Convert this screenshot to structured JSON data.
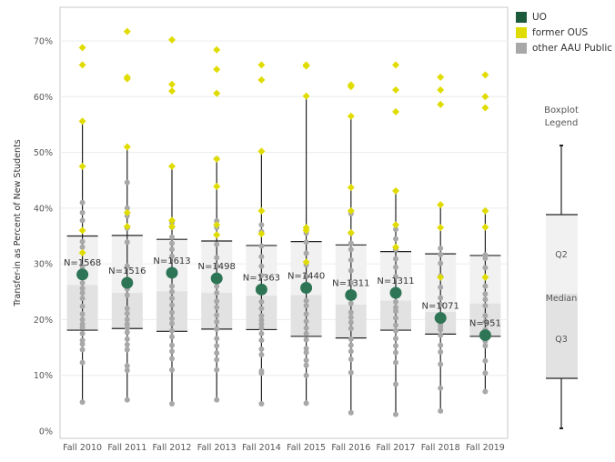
{
  "chart_data": {
    "type": "boxplot",
    "title": "",
    "xlabel": "",
    "ylabel": "Transfer-in as Percent of New Students",
    "ylim": [
      0,
      73
    ],
    "y_ticks": [
      0,
      10,
      20,
      30,
      40,
      50,
      60,
      70
    ],
    "y_tick_labels": [
      "0%",
      "10%",
      "20%",
      "30%",
      "40%",
      "50%",
      "60%",
      "70%"
    ],
    "grid": true,
    "categories": [
      "Fall 2010",
      "Fall 2011",
      "Fall 2012",
      "Fall 2013",
      "Fall 2014",
      "Fall 2015",
      "Fall 2016",
      "Fall 2017",
      "Fall 2018",
      "Fall 2019"
    ],
    "boxes": [
      {
        "whisker_high": 55.6,
        "box_high": 35.0,
        "median": 26.2,
        "box_low": 18.1,
        "whisker_low": 5.2
      },
      {
        "whisker_high": 51.0,
        "box_high": 35.1,
        "median": 24.8,
        "box_low": 18.4,
        "whisker_low": 5.6
      },
      {
        "whisker_high": 47.5,
        "box_high": 34.4,
        "median": 25.1,
        "box_low": 17.9,
        "whisker_low": 4.9
      },
      {
        "whisker_high": 49.0,
        "box_high": 34.1,
        "median": 24.8,
        "box_low": 18.3,
        "whisker_low": 5.6
      },
      {
        "whisker_high": 50.2,
        "box_high": 33.3,
        "median": 24.3,
        "box_low": 18.2,
        "whisker_low": 4.9
      },
      {
        "whisker_high": 60.1,
        "box_high": 34.0,
        "median": 24.4,
        "box_low": 17.0,
        "whisker_low": 5.0
      },
      {
        "whisker_high": 56.5,
        "box_high": 33.4,
        "median": 22.7,
        "box_low": 16.7,
        "whisker_low": 3.3
      },
      {
        "whisker_high": 43.1,
        "box_high": 32.2,
        "median": 23.4,
        "box_low": 18.1,
        "whisker_low": 3.0
      },
      {
        "whisker_high": 40.7,
        "box_high": 31.8,
        "median": 21.4,
        "box_low": 17.4,
        "whisker_low": 3.6
      },
      {
        "whisker_high": 39.5,
        "box_high": 31.5,
        "median": 22.9,
        "box_low": 17.0,
        "whisker_low": 7.1
      }
    ],
    "series": [
      {
        "name": "UO",
        "color": "#2e7556",
        "values": [
          28.1,
          26.6,
          28.4,
          27.4,
          25.4,
          25.7,
          24.4,
          24.8,
          20.3,
          17.2
        ],
        "labels": [
          "N=1568",
          "N=1516",
          "N=1613",
          "N=1498",
          "N=1363",
          "N=1440",
          "N=1311",
          "N=1311",
          "N=1071",
          "N=951"
        ]
      },
      {
        "name": "former OUS",
        "color": "#e0dc00",
        "values": [
          [
            68.8,
            65.7,
            55.6,
            47.5,
            36.0,
            32.0
          ],
          [
            71.7,
            63.5,
            63.2,
            51.0,
            39.2,
            36.7
          ],
          [
            70.2,
            62.2,
            61.0,
            47.5,
            37.8,
            36.7
          ],
          [
            68.4,
            64.9,
            60.6,
            48.8,
            43.9,
            37.0,
            35.2
          ],
          [
            65.7,
            63.0,
            50.2,
            39.5,
            35.4
          ],
          [
            65.7,
            65.5,
            60.1,
            36.5,
            36.0,
            30.3
          ],
          [
            62.1,
            61.8,
            56.5,
            43.7,
            39.5,
            35.6
          ],
          [
            65.7,
            61.2,
            57.3,
            43.1,
            37.0,
            33.0
          ],
          [
            63.5,
            61.2,
            58.6,
            40.6,
            36.5,
            27.6
          ],
          [
            63.9,
            60.0,
            58.0,
            39.5,
            36.6,
            27.6
          ]
        ]
      },
      {
        "name": "other AAU Public",
        "color": "#a8a8a8",
        "values": [
          [
            41.0,
            39.2,
            37.8,
            34.0,
            33.0,
            29.5,
            27.6,
            26.6,
            25.6,
            24.8,
            23.8,
            22.4,
            21.0,
            20.0,
            19.2,
            18.6,
            17.5,
            16.3,
            15.6,
            14.6,
            12.3,
            5.2
          ],
          [
            44.6,
            40.0,
            38.6,
            36.4,
            33.9,
            29.6,
            26.4,
            25.5,
            24.4,
            22.0,
            21.1,
            20.0,
            19.2,
            18.5,
            17.7,
            16.5,
            15.5,
            14.6,
            11.7,
            10.9,
            5.6
          ],
          [
            37.4,
            36.6,
            34.8,
            33.7,
            32.6,
            31.4,
            26.0,
            25.0,
            23.8,
            22.6,
            21.3,
            20.2,
            19.3,
            18.0,
            16.9,
            15.4,
            14.3,
            13.0,
            11.0,
            4.9
          ],
          [
            37.7,
            36.5,
            35.2,
            33.5,
            31.1,
            29.6,
            26.0,
            24.8,
            23.3,
            22.2,
            20.8,
            19.6,
            18.3,
            16.6,
            15.3,
            14.0,
            12.8,
            11.0,
            5.6
          ],
          [
            37.0,
            35.8,
            33.2,
            31.3,
            29.6,
            27.9,
            24.9,
            23.2,
            22.0,
            20.7,
            19.9,
            19.2,
            18.5,
            17.5,
            16.3,
            14.7,
            13.7,
            10.8,
            10.4,
            4.9
          ],
          [
            36.4,
            35.5,
            33.9,
            31.9,
            29.8,
            27.7,
            23.4,
            22.5,
            21.0,
            19.7,
            18.5,
            17.5,
            16.4,
            14.8,
            14.1,
            12.7,
            11.8,
            10.0,
            5.0
          ],
          [
            39.0,
            35.5,
            33.7,
            32.6,
            30.7,
            28.8,
            26.6,
            24.8,
            22.9,
            21.3,
            20.4,
            19.5,
            18.4,
            16.5,
            15.4,
            14.3,
            12.9,
            10.5,
            3.3
          ],
          [
            36.2,
            34.5,
            32.6,
            30.9,
            29.4,
            27.7,
            25.0,
            23.2,
            22.2,
            21.5,
            20.3,
            19.0,
            18.0,
            16.6,
            15.3,
            14.1,
            12.3,
            8.4,
            3.0
          ],
          [
            32.8,
            31.7,
            30.1,
            27.8,
            25.8,
            23.9,
            22.7,
            19.3,
            18.8,
            18.2,
            17.2,
            15.4,
            14.2,
            12.0,
            7.7,
            3.6
          ],
          [
            31.6,
            31.0,
            29.3,
            26.0,
            24.6,
            23.6,
            22.5,
            20.7,
            19.6,
            18.2,
            16.1,
            15.3,
            12.6,
            10.4,
            7.1
          ]
        ]
      }
    ],
    "legend": {
      "position": "top-right",
      "entries": [
        {
          "label": "UO",
          "color": "#1d5a3c"
        },
        {
          "label": "former OUS",
          "color": "#e0dc00"
        },
        {
          "label": "other AAU Public",
          "color": "#a8a8a8"
        }
      ]
    },
    "boxplot_legend": {
      "title_line1": "Boxplot",
      "title_line2": "Legend",
      "q2_label": "Q2",
      "median_label": "Median",
      "q3_label": "Q3"
    }
  },
  "colors": {
    "box_upper": "#f1f1f1",
    "box_lower": "#e2e2e2",
    "whisker": "#222222",
    "grid": "#ececec",
    "axis": "#cccccc"
  }
}
